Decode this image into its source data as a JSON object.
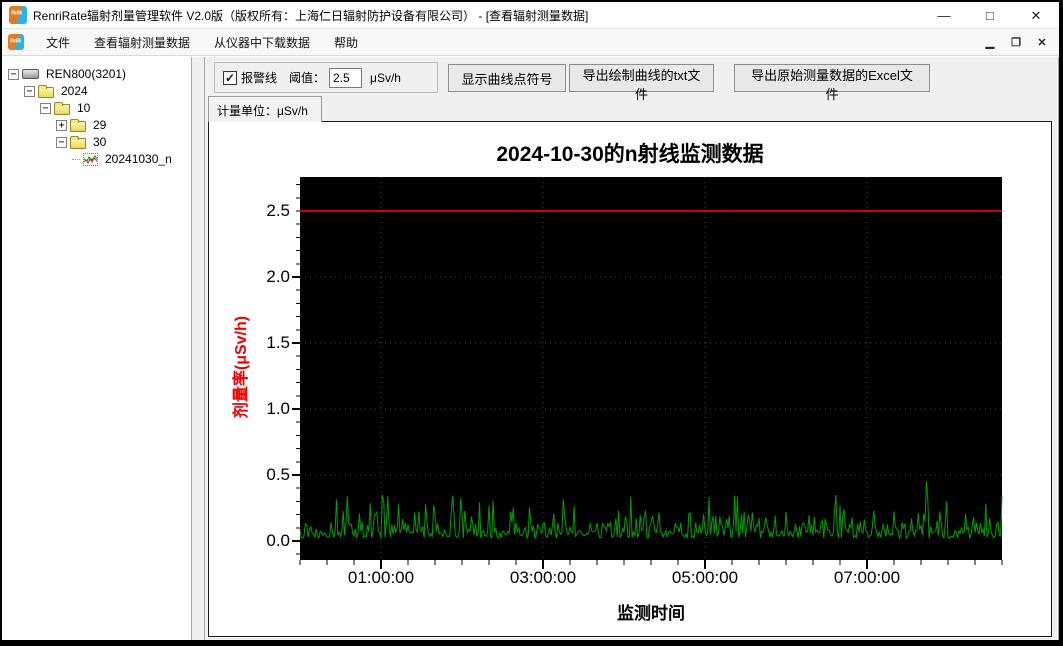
{
  "window": {
    "title": "RenriRate辐射剂量管理软件 V2.0版（版权所有：上海仁日辐射防护设备有限公司） - [查看辐射测量数据]",
    "icons": {
      "minimize": "—",
      "maximize": "□",
      "close": "✕",
      "child_minimize": "▁",
      "child_restore": "❐",
      "child_close": "✕"
    }
  },
  "menu": {
    "items": [
      {
        "name": "menu-file",
        "label": "文件"
      },
      {
        "name": "menu-view-measurement-data",
        "label": "查看辐射测量数据"
      },
      {
        "name": "menu-download-from-instrument",
        "label": "从仪器中下载数据"
      },
      {
        "name": "menu-help",
        "label": "帮助"
      }
    ]
  },
  "tree": {
    "items": [
      {
        "name": "tree-node-ren800",
        "label": "REN800(3201)",
        "level": 0,
        "expander": "-",
        "icon": "device"
      },
      {
        "name": "tree-node-2024",
        "label": "2024",
        "level": 1,
        "expander": "-",
        "icon": "folder"
      },
      {
        "name": "tree-node-10",
        "label": "10",
        "level": 2,
        "expander": "-",
        "icon": "folder"
      },
      {
        "name": "tree-node-29",
        "label": "29",
        "level": 3,
        "expander": "+",
        "icon": "folder"
      },
      {
        "name": "tree-node-30",
        "label": "30",
        "level": 3,
        "expander": "-",
        "icon": "folder"
      },
      {
        "name": "tree-node-20241030-n",
        "label": "20241030_n",
        "level": 4,
        "expander": null,
        "icon": "chart"
      }
    ]
  },
  "toolbar": {
    "alarm_checkbox_label": "报警线",
    "alarm_checked": "✓",
    "threshold_label": "阈值：",
    "threshold_value": "2.5",
    "threshold_unit": "μSv/h",
    "show_points_button": "显示曲线点符号",
    "export_txt_button": "导出绘制曲线的txt文件",
    "export_excel_button": "导出原始测量数据的Excel文件"
  },
  "tab": {
    "label": "计量单位：μSv/h"
  },
  "chart_data": {
    "type": "line",
    "title": "2024-10-30的n射线监测数据",
    "xlabel": "监测时间",
    "ylabel": "剂量率(μSv/h)",
    "plot_bg": "#000000",
    "grid": {
      "color": "#0b6e14",
      "style": "dotted"
    },
    "x_ticks": [
      {
        "label": "01:00:00",
        "minute": 60
      },
      {
        "label": "03:00:00",
        "minute": 180
      },
      {
        "label": "05:00:00",
        "minute": 300
      },
      {
        "label": "07:00:00",
        "minute": 420
      }
    ],
    "x_minor_step_minutes": 20,
    "x_range_minutes": [
      0,
      520
    ],
    "y_ticks": [
      "0.0",
      "0.5",
      "1.0",
      "1.5",
      "2.0",
      "2.5"
    ],
    "y_minor_step": 0.1,
    "ylim": [
      -0.14,
      2.76
    ],
    "alarm_line": {
      "value": 2.5,
      "color": "#cc0000"
    },
    "series": [
      {
        "name": "n-ray-dose-rate",
        "color": "#00a000",
        "sample_minutes": 1,
        "noise_model": {
          "seed": 13,
          "levels": [
            [
              0.5,
              0.02,
              0.06
            ],
            [
              0.78,
              0.06,
              0.08
            ],
            [
              0.93,
              0.13,
              0.1
            ],
            [
              1.01,
              0.2,
              0.15
            ]
          ]
        },
        "extra_spikes": [
          {
            "minute": 35,
            "value": 0.34
          },
          {
            "minute": 61,
            "value": 0.35
          },
          {
            "minute": 62,
            "value": 0.3
          },
          {
            "minute": 303,
            "value": 0.33
          },
          {
            "minute": 464,
            "value": 0.45
          }
        ]
      }
    ]
  }
}
